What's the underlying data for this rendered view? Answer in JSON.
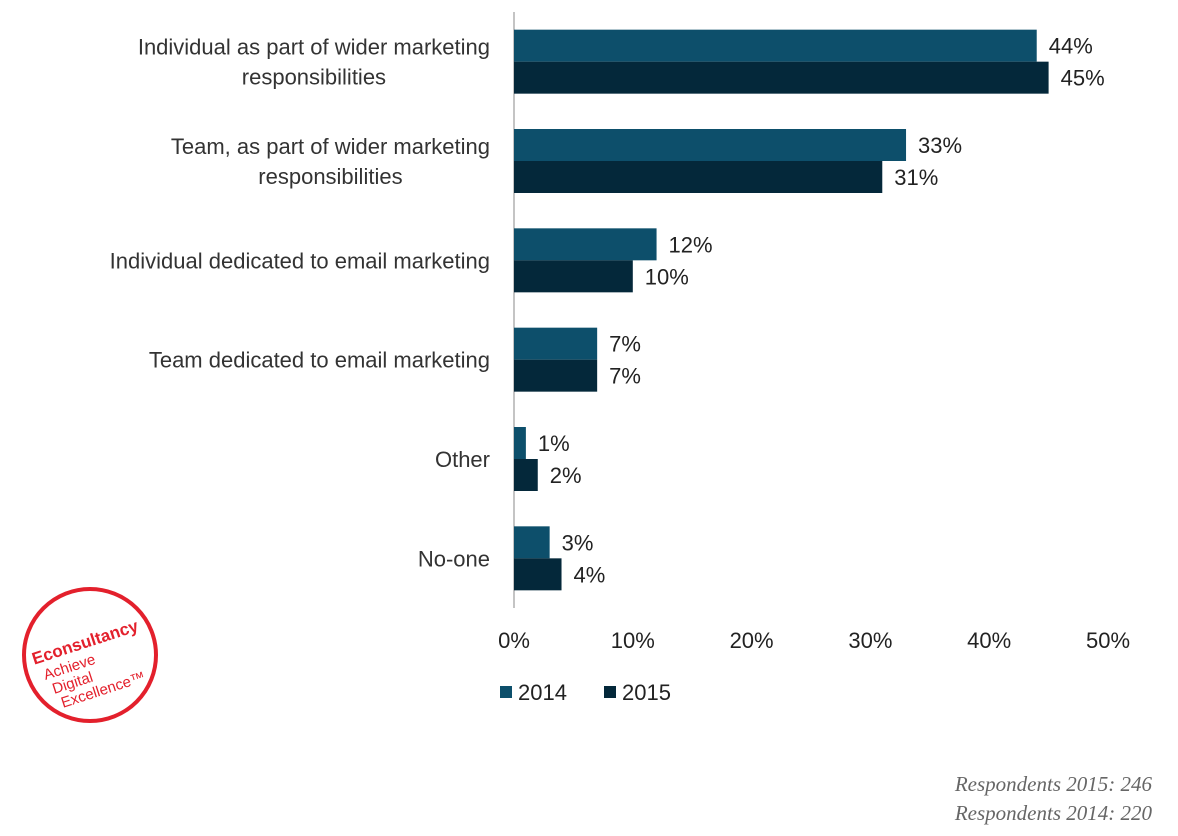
{
  "chart_data": {
    "type": "bar",
    "orientation": "horizontal",
    "categories": [
      [
        "Individual as part of wider marketing",
        "responsibilities"
      ],
      [
        "Team, as part of wider marketing",
        "responsibilities"
      ],
      [
        "Individual dedicated to email marketing"
      ],
      [
        "Team dedicated to email marketing"
      ],
      [
        "Other"
      ],
      [
        "No-one"
      ]
    ],
    "series": [
      {
        "name": "2014",
        "values": [
          44,
          33,
          12,
          7,
          1,
          3
        ],
        "labels": [
          "44%",
          "33%",
          "12%",
          "7%",
          "1%",
          "3%"
        ],
        "color": "#0d4f6b"
      },
      {
        "name": "2015",
        "values": [
          45,
          31,
          10,
          7,
          2,
          4
        ],
        "labels": [
          "45%",
          "31%",
          "10%",
          "7%",
          "2%",
          "4%"
        ],
        "color": "#04283a"
      }
    ],
    "xlim": [
      0,
      50
    ],
    "xticks": [
      "0%",
      "10%",
      "20%",
      "30%",
      "40%",
      "50%"
    ],
    "grid": false,
    "legend_position": "bottom"
  },
  "footnotes": {
    "respondents_2015": "Respondents 2015: 246",
    "respondents_2014": "Respondents 2014: 220"
  },
  "logo": {
    "brand": "Econsultancy",
    "tagline": [
      "Achieve",
      "Digital",
      "Excellence™"
    ],
    "color": "#e3202c"
  }
}
